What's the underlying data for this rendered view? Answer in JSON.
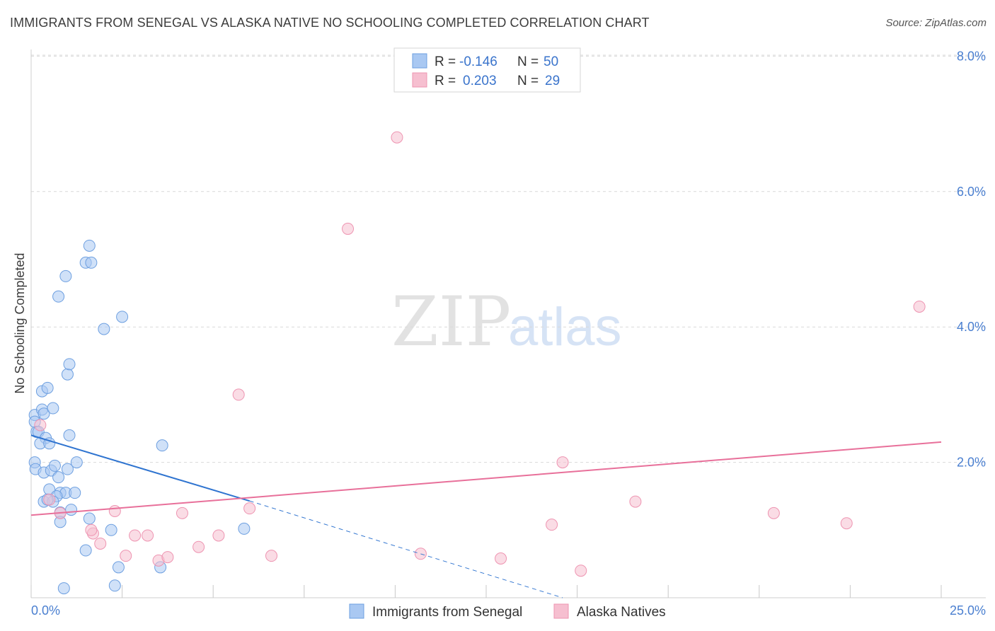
{
  "title": "IMMIGRANTS FROM SENEGAL VS ALASKA NATIVE NO SCHOOLING COMPLETED CORRELATION CHART",
  "source": "Source: ZipAtlas.com",
  "watermark": {
    "zip": "ZIP",
    "atlas": "atlas"
  },
  "colors": {
    "blue_fill": "#a9c8f2",
    "blue_stroke": "#6d9fe0",
    "blue_line": "#2f74d0",
    "pink_fill": "#f6bfd0",
    "pink_stroke": "#ee94b1",
    "pink_line": "#e8709a",
    "grid": "#d9d9d9",
    "tick_text": "#4a7fd0"
  },
  "legend": {
    "rows": [
      {
        "r_label": "R =",
        "r_value": "-0.146",
        "n_label": "N =",
        "n_value": "50"
      },
      {
        "r_label": "R =",
        "r_value": "0.203",
        "n_label": "N =",
        "n_value": "29"
      }
    ]
  },
  "chart_data": {
    "type": "scatter",
    "title": "IMMIGRANTS FROM SENEGAL VS ALASKA NATIVE NO SCHOOLING COMPLETED CORRELATION CHART",
    "xlabel": "",
    "ylabel": "No Schooling Completed",
    "xlim": [
      0,
      25
    ],
    "ylim": [
      0,
      8.3
    ],
    "x_tick_labels": {
      "left": "0.0%",
      "right": "25.0%"
    },
    "y_ticks": [
      {
        "value": 2,
        "label": "2.0%"
      },
      {
        "value": 4,
        "label": "4.0%"
      },
      {
        "value": 6,
        "label": "6.0%"
      },
      {
        "value": 8,
        "label": "8.0%"
      }
    ],
    "legend_position": "top-center",
    "series": [
      {
        "name": "Immigrants from Senegal",
        "color_key": "blue",
        "R": -0.146,
        "N": 50,
        "trend": {
          "x0": 0,
          "y0": 2.4,
          "x1_solid": 6.0,
          "y1_solid": 1.43,
          "x1_dashed": 14.6,
          "y1_dashed": 0
        },
        "points": [
          [
            0.1,
            2.7
          ],
          [
            0.1,
            2.6
          ],
          [
            0.15,
            2.45
          ],
          [
            0.2,
            2.45
          ],
          [
            0.3,
            2.78
          ],
          [
            0.35,
            2.72
          ],
          [
            0.4,
            2.36
          ],
          [
            0.25,
            2.28
          ],
          [
            0.5,
            2.28
          ],
          [
            0.6,
            2.8
          ],
          [
            0.3,
            3.05
          ],
          [
            0.45,
            3.1
          ],
          [
            0.1,
            2.0
          ],
          [
            0.12,
            1.9
          ],
          [
            0.35,
            1.85
          ],
          [
            0.55,
            1.88
          ],
          [
            0.65,
            1.95
          ],
          [
            1.0,
            1.9
          ],
          [
            1.25,
            2.0
          ],
          [
            0.75,
            1.78
          ],
          [
            0.5,
            1.6
          ],
          [
            0.8,
            1.55
          ],
          [
            0.95,
            1.55
          ],
          [
            1.2,
            1.55
          ],
          [
            0.7,
            1.5
          ],
          [
            0.35,
            1.42
          ],
          [
            0.6,
            1.42
          ],
          [
            0.45,
            1.45
          ],
          [
            1.1,
            1.3
          ],
          [
            0.8,
            1.26
          ],
          [
            0.8,
            1.12
          ],
          [
            1.6,
            1.17
          ],
          [
            1.5,
            0.7
          ],
          [
            2.3,
            0.18
          ],
          [
            0.9,
            0.14
          ],
          [
            2.4,
            0.45
          ],
          [
            3.6,
            2.25
          ],
          [
            2.5,
            4.15
          ],
          [
            2.0,
            3.97
          ],
          [
            1.5,
            4.95
          ],
          [
            1.0,
            3.3
          ],
          [
            1.05,
            3.45
          ],
          [
            1.65,
            4.95
          ],
          [
            1.6,
            5.2
          ],
          [
            1.05,
            2.4
          ],
          [
            0.75,
            4.45
          ],
          [
            0.95,
            4.75
          ],
          [
            2.2,
            1.0
          ],
          [
            5.85,
            1.02
          ],
          [
            3.55,
            0.45
          ]
        ]
      },
      {
        "name": "Alaska Natives",
        "color_key": "pink",
        "R": 0.203,
        "N": 29,
        "trend": {
          "x0": 0,
          "y0": 1.22,
          "x1": 25,
          "y1": 2.3
        },
        "points": [
          [
            0.25,
            2.55
          ],
          [
            0.5,
            1.45
          ],
          [
            1.7,
            0.95
          ],
          [
            1.65,
            1.0
          ],
          [
            1.9,
            0.8
          ],
          [
            2.3,
            1.28
          ],
          [
            2.6,
            0.62
          ],
          [
            2.85,
            0.92
          ],
          [
            3.2,
            0.92
          ],
          [
            3.5,
            0.55
          ],
          [
            3.75,
            0.6
          ],
          [
            4.15,
            1.25
          ],
          [
            4.6,
            0.75
          ],
          [
            5.15,
            0.92
          ],
          [
            5.7,
            3.0
          ],
          [
            6.0,
            1.32
          ],
          [
            6.6,
            0.62
          ],
          [
            8.7,
            5.45
          ],
          [
            10.05,
            6.8
          ],
          [
            10.7,
            0.65
          ],
          [
            12.9,
            0.58
          ],
          [
            14.3,
            1.08
          ],
          [
            14.6,
            2.0
          ],
          [
            15.1,
            0.4
          ],
          [
            16.6,
            1.42
          ],
          [
            20.4,
            1.25
          ],
          [
            22.4,
            1.1
          ],
          [
            24.4,
            4.3
          ],
          [
            0.8,
            1.25
          ]
        ]
      }
    ]
  }
}
